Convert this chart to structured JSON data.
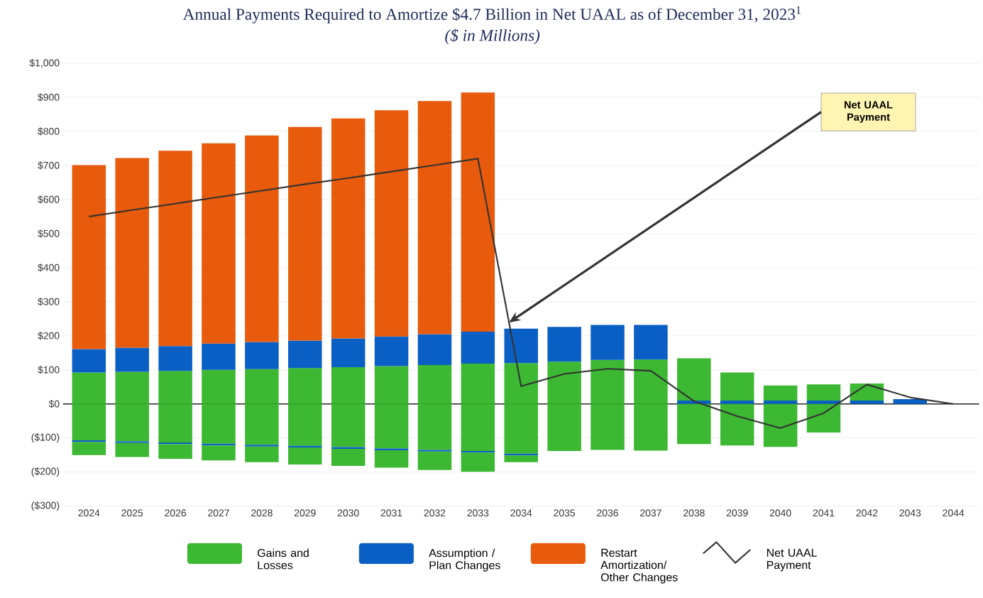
{
  "chart_data": {
    "type": "bar",
    "stacked": true,
    "title": "Annual Payments Required to Amortize $4.7 Billion in Net UAAL as of December 31, 2023$^{1}$",
    "subtitle": "($ in Millions)",
    "categories": [
      "2024",
      "2025",
      "2026",
      "2027",
      "2028",
      "2029",
      "2030",
      "2031",
      "2032",
      "2033",
      "2034",
      "2035",
      "2036",
      "2037",
      "2038",
      "2039",
      "2040",
      "2041",
      "2042",
      "2043",
      "2044"
    ],
    "series": [
      {
        "color": "#0a5fc4",
        "values": [
          null,
          null,
          null,
          null,
          null,
          null,
          null,
          null,
          null,
          null,
          null,
          null,
          null,
          null,
          10,
          10,
          10,
          10,
          10,
          14,
          null
        ]
      },
      {
        "name": "Gains and Losses",
        "color": "#3cb832",
        "values": [
          92,
          94,
          97,
          100,
          102,
          105,
          108,
          111,
          114,
          118,
          120,
          124,
          129,
          130,
          124,
          82,
          44,
          47,
          50,
          null,
          null
        ]
      },
      {
        "name": "Assumption / Plan Changes",
        "color": "#0a5fc4",
        "values": [
          69,
          71,
          73,
          77,
          80,
          81,
          84,
          87,
          91,
          94,
          101,
          102,
          103,
          102,
          null,
          null,
          null,
          null,
          null,
          null,
          null
        ]
      },
      {
        "name": "Restart Amortization/ Other Changes",
        "color": "#e85a0c",
        "values": [
          540,
          557,
          573,
          588,
          606,
          627,
          646,
          664,
          684,
          702,
          null,
          null,
          null,
          null,
          null,
          null,
          null,
          null,
          null,
          null,
          null
        ]
      },
      {
        "color": "#3cb832",
        "values": [
          -107,
          -110,
          -113,
          -117,
          -120,
          -123,
          -127,
          -131,
          -135,
          -138,
          -146,
          -138,
          -135,
          -137,
          -118,
          -122,
          -126,
          -84,
          null,
          null,
          null
        ]
      },
      {
        "color": "#0a5fc4",
        "values": [
          -5,
          -5,
          -5,
          -5,
          -5,
          -5,
          -5,
          -5,
          -5,
          -5,
          -5,
          null,
          null,
          null,
          null,
          null,
          null,
          null,
          null,
          null,
          null
        ]
      },
      {
        "color": "#3cb832",
        "values": [
          -38,
          -41,
          -43,
          -44,
          -46,
          -50,
          -50,
          -51,
          -54,
          -56,
          -20,
          null,
          null,
          null,
          null,
          null,
          null,
          null,
          null,
          null,
          null
        ]
      },
      {
        "name": "Net UAAL Payment",
        "type": "line",
        "color": "#333333",
        "values": [
          550,
          569,
          588,
          607,
          626,
          645,
          663,
          682,
          701,
          720,
          52,
          88,
          103,
          97,
          8,
          -36,
          -71,
          -27,
          57,
          19,
          0
        ]
      }
    ],
    "ylim": [
      -300,
      1000
    ],
    "yticks": [
      {
        "value": -300,
        "label": "($300)"
      },
      {
        "value": -200,
        "label": "($200)"
      },
      {
        "value": -100,
        "label": "($100)"
      },
      {
        "value": 0,
        "label": "$0"
      },
      {
        "value": 100,
        "label": "$100"
      },
      {
        "value": 200,
        "label": "$200"
      },
      {
        "value": 300,
        "label": "$300"
      },
      {
        "value": 400,
        "label": "$400"
      },
      {
        "value": 500,
        "label": "$500"
      },
      {
        "value": 600,
        "label": "$600"
      },
      {
        "value": 700,
        "label": "$700"
      },
      {
        "value": 800,
        "label": "$800"
      },
      {
        "value": 900,
        "label": "$900"
      },
      {
        "value": 1000,
        "label": "$1,000"
      }
    ],
    "grid": "y",
    "legend": "bottom",
    "annotations": [
      "Net UAAL Payment"
    ]
  }
}
